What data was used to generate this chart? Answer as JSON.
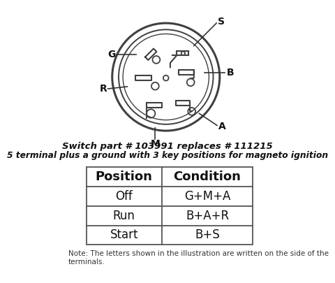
{
  "subtitle1": "Switch part # 103991 replaces # 111215",
  "subtitle2": "5 terminal plus a ground with 3 key positions for magneto ignition",
  "note": "Note: The letters shown in the illustration are written on the side of the\nterminals.",
  "table_headers": [
    "Position",
    "Condition"
  ],
  "table_rows": [
    [
      "Off",
      "G+M+A"
    ],
    [
      "Run",
      "B+A+R"
    ],
    [
      "Start",
      "B+S"
    ]
  ],
  "bg_color": "#ffffff",
  "circle_color": "#404040",
  "term_color": "#404040"
}
